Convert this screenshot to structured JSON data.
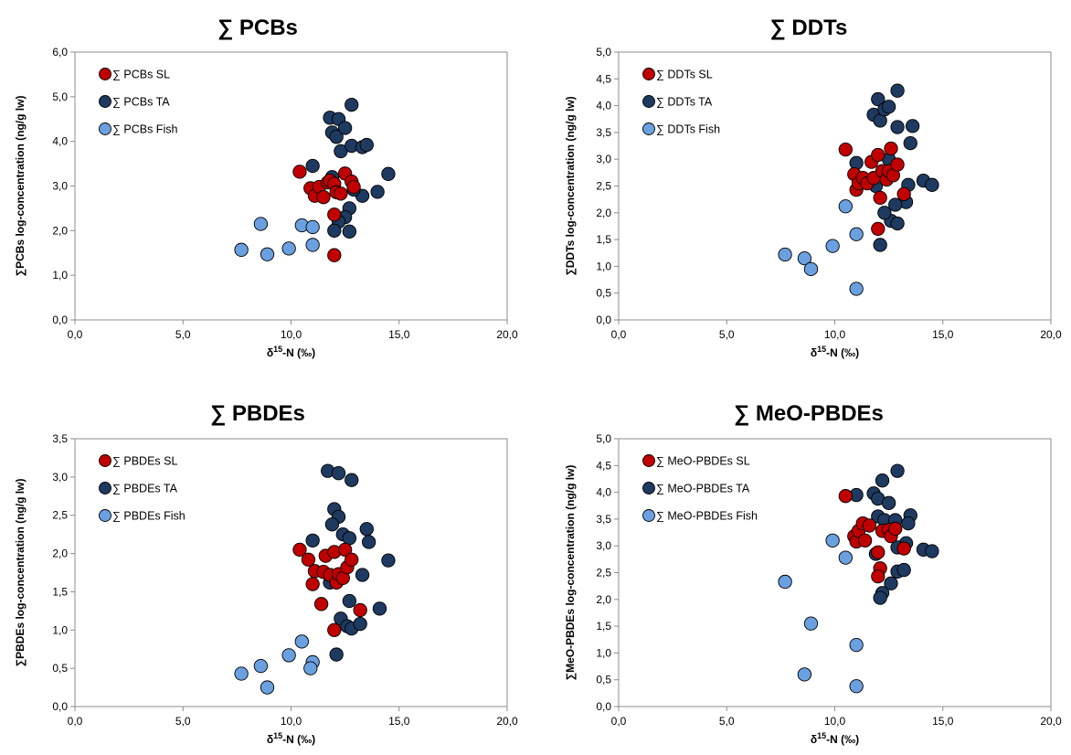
{
  "chart_data": [
    {
      "type": "scatter",
      "title": "∑ PCBs",
      "xlabel": "δ15-N (‰)",
      "ylabel": "∑PCBs log-concentration (ng/g lw)",
      "xlim": [
        0,
        20
      ],
      "ylim": [
        0,
        6
      ],
      "xticks": [
        "0,0",
        "5,0",
        "10,0",
        "15,0",
        "20,0"
      ],
      "yticks": [
        "0,0",
        "1,0",
        "2,0",
        "3,0",
        "4,0",
        "5,0",
        "6,0"
      ],
      "legend": "top-left",
      "series": [
        {
          "name": "∑ PCBs SL",
          "color": "#c00000",
          "points": [
            [
              10.4,
              3.32
            ],
            [
              10.9,
              2.95
            ],
            [
              11.1,
              2.78
            ],
            [
              11.3,
              2.98
            ],
            [
              11.5,
              2.75
            ],
            [
              11.7,
              3.08
            ],
            [
              11.8,
              3.12
            ],
            [
              12.0,
              3.05
            ],
            [
              12.1,
              2.86
            ],
            [
              12.3,
              2.83
            ],
            [
              12.5,
              3.28
            ],
            [
              12.8,
              3.1
            ],
            [
              12.9,
              2.98
            ],
            [
              12.0,
              2.36
            ],
            [
              12.0,
              1.45
            ]
          ]
        },
        {
          "name": "∑ PCBs TA",
          "color": "#1f3a60",
          "points": [
            [
              11.0,
              3.45
            ],
            [
              11.8,
              4.53
            ],
            [
              11.9,
              4.2
            ],
            [
              12.2,
              4.5
            ],
            [
              12.1,
              4.1
            ],
            [
              12.3,
              3.78
            ],
            [
              12.5,
              4.3
            ],
            [
              12.8,
              4.82
            ],
            [
              12.8,
              3.9
            ],
            [
              13.3,
              3.87
            ],
            [
              13.5,
              3.92
            ],
            [
              14.5,
              3.27
            ],
            [
              14.0,
              2.87
            ],
            [
              13.3,
              2.78
            ],
            [
              12.9,
              2.92
            ],
            [
              12.7,
              2.5
            ],
            [
              12.5,
              2.3
            ],
            [
              12.2,
              2.2
            ],
            [
              12.0,
              2.0
            ],
            [
              12.7,
              1.98
            ],
            [
              11.9,
              3.2
            ]
          ]
        },
        {
          "name": "∑ PCBs Fish",
          "color": "#6ba0e0",
          "points": [
            [
              7.7,
              1.57
            ],
            [
              8.6,
              2.15
            ],
            [
              8.9,
              1.47
            ],
            [
              9.9,
              1.6
            ],
            [
              10.5,
              2.12
            ],
            [
              11.0,
              2.08
            ],
            [
              11.0,
              1.68
            ]
          ]
        }
      ]
    },
    {
      "type": "scatter",
      "title": "∑ DDTs",
      "xlabel": "δ15-N (‰)",
      "ylabel": "∑DDTs log-concentration (ng/g lw)",
      "xlim": [
        0,
        20
      ],
      "ylim": [
        0,
        5
      ],
      "xticks": [
        "0,0",
        "5,0",
        "10,0",
        "15,0",
        "20,0"
      ],
      "yticks": [
        "0,0",
        "0,5",
        "1,0",
        "1,5",
        "2,0",
        "2,5",
        "3,0",
        "3,5",
        "4,0",
        "4,5",
        "5,0"
      ],
      "legend": "top-left",
      "series": [
        {
          "name": "∑ DDTs SL",
          "color": "#c00000",
          "points": [
            [
              10.5,
              3.18
            ],
            [
              10.9,
              2.72
            ],
            [
              11.0,
              2.43
            ],
            [
              11.1,
              2.55
            ],
            [
              11.3,
              2.65
            ],
            [
              11.5,
              2.55
            ],
            [
              11.7,
              2.95
            ],
            [
              11.8,
              2.65
            ],
            [
              12.0,
              3.08
            ],
            [
              12.1,
              2.28
            ],
            [
              12.2,
              2.78
            ],
            [
              12.4,
              2.62
            ],
            [
              12.5,
              2.78
            ],
            [
              12.6,
              3.2
            ],
            [
              12.7,
              2.7
            ],
            [
              12.9,
              2.9
            ],
            [
              13.2,
              2.35
            ],
            [
              12.0,
              1.7
            ]
          ]
        },
        {
          "name": "∑ DDTs TA",
          "color": "#1f3a60",
          "points": [
            [
              11.0,
              2.93
            ],
            [
              11.8,
              3.83
            ],
            [
              12.0,
              4.12
            ],
            [
              12.1,
              3.72
            ],
            [
              12.3,
              3.93
            ],
            [
              12.5,
              3.98
            ],
            [
              12.9,
              4.28
            ],
            [
              12.9,
              3.6
            ],
            [
              13.6,
              3.62
            ],
            [
              13.5,
              3.3
            ],
            [
              14.1,
              2.6
            ],
            [
              14.5,
              2.52
            ],
            [
              13.4,
              2.52
            ],
            [
              13.3,
              2.2
            ],
            [
              12.8,
              2.15
            ],
            [
              12.6,
              1.85
            ],
            [
              12.3,
              2.0
            ],
            [
              12.9,
              1.8
            ],
            [
              12.1,
              1.4
            ],
            [
              11.9,
              2.5
            ],
            [
              12.5,
              3.0
            ]
          ]
        },
        {
          "name": "∑ DDTs Fish",
          "color": "#6ba0e0",
          "points": [
            [
              7.7,
              1.22
            ],
            [
              8.6,
              1.15
            ],
            [
              8.9,
              0.95
            ],
            [
              9.9,
              1.38
            ],
            [
              10.5,
              2.12
            ],
            [
              11.0,
              1.6
            ],
            [
              11.0,
              0.58
            ]
          ]
        }
      ]
    },
    {
      "type": "scatter",
      "title": "∑ PBDEs",
      "xlabel": "δ15-N (‰)",
      "ylabel": "∑PBDEs log-concentration (ng/g lw)",
      "xlim": [
        0,
        20
      ],
      "ylim": [
        0,
        3.5
      ],
      "xticks": [
        "0,0",
        "5,0",
        "10,0",
        "15,0",
        "20,0"
      ],
      "yticks": [
        "0,0",
        "0,5",
        "1,0",
        "1,5",
        "2,0",
        "2,5",
        "3,0",
        "3,5"
      ],
      "legend": "top-left",
      "series": [
        {
          "name": "∑ PBDEs SL",
          "color": "#c00000",
          "points": [
            [
              10.4,
              2.05
            ],
            [
              10.8,
              1.92
            ],
            [
              11.0,
              1.6
            ],
            [
              11.1,
              1.77
            ],
            [
              11.5,
              1.76
            ],
            [
              11.6,
              1.97
            ],
            [
              11.8,
              1.72
            ],
            [
              12.0,
              2.02
            ],
            [
              12.1,
              1.62
            ],
            [
              12.2,
              1.73
            ],
            [
              12.4,
              1.68
            ],
            [
              12.5,
              2.05
            ],
            [
              12.6,
              1.82
            ],
            [
              12.8,
              1.92
            ],
            [
              11.4,
              1.34
            ],
            [
              13.2,
              1.26
            ],
            [
              12.0,
              1.0
            ]
          ]
        },
        {
          "name": "∑ PBDEs TA",
          "color": "#1f3a60",
          "points": [
            [
              11.0,
              2.17
            ],
            [
              11.7,
              3.08
            ],
            [
              12.2,
              3.05
            ],
            [
              12.8,
              2.96
            ],
            [
              12.0,
              2.58
            ],
            [
              12.2,
              2.48
            ],
            [
              12.4,
              2.25
            ],
            [
              12.7,
              2.2
            ],
            [
              13.5,
              2.32
            ],
            [
              13.6,
              2.15
            ],
            [
              14.5,
              1.91
            ],
            [
              13.3,
              1.72
            ],
            [
              12.7,
              1.38
            ],
            [
              11.8,
              1.62
            ],
            [
              12.3,
              1.15
            ],
            [
              12.6,
              1.05
            ],
            [
              12.8,
              1.02
            ],
            [
              13.2,
              1.08
            ],
            [
              14.1,
              1.28
            ],
            [
              12.1,
              0.68
            ],
            [
              11.9,
              2.38
            ]
          ]
        },
        {
          "name": "∑ PBDEs Fish",
          "color": "#6ba0e0",
          "points": [
            [
              7.7,
              0.43
            ],
            [
              8.6,
              0.53
            ],
            [
              8.9,
              0.25
            ],
            [
              9.9,
              0.67
            ],
            [
              10.5,
              0.85
            ],
            [
              11.0,
              0.58
            ],
            [
              10.9,
              0.5
            ]
          ]
        }
      ]
    },
    {
      "type": "scatter",
      "title": "∑ MeO-PBDEs",
      "xlabel": "δ15-N (‰)",
      "ylabel": "∑MeO-PBDEs log-concentration (ng/g lw)",
      "xlim": [
        0,
        20
      ],
      "ylim": [
        0,
        5
      ],
      "xticks": [
        "0,0",
        "5,0",
        "10,0",
        "15,0",
        "20,0"
      ],
      "yticks": [
        "0,0",
        "0,5",
        "1,0",
        "1,5",
        "2,0",
        "2,5",
        "3,0",
        "3,5",
        "4,0",
        "4,5",
        "5,0"
      ],
      "legend": "top-left",
      "series": [
        {
          "name": "∑ MeO-PBDEs SL",
          "color": "#c00000",
          "points": [
            [
              10.5,
              3.93
            ],
            [
              10.9,
              3.18
            ],
            [
              11.0,
              3.08
            ],
            [
              11.1,
              3.28
            ],
            [
              11.3,
              3.42
            ],
            [
              11.4,
              3.1
            ],
            [
              11.6,
              3.38
            ],
            [
              12.0,
              2.88
            ],
            [
              12.2,
              3.28
            ],
            [
              12.5,
              3.3
            ],
            [
              12.6,
              3.18
            ],
            [
              12.8,
              3.32
            ],
            [
              13.2,
              2.95
            ],
            [
              12.1,
              2.58
            ],
            [
              12.0,
              2.43
            ]
          ]
        },
        {
          "name": "∑ MeO-PBDEs TA",
          "color": "#1f3a60",
          "points": [
            [
              11.0,
              3.95
            ],
            [
              11.8,
              3.98
            ],
            [
              12.0,
              3.88
            ],
            [
              12.2,
              4.22
            ],
            [
              12.5,
              3.8
            ],
            [
              12.9,
              4.4
            ],
            [
              12.0,
              3.55
            ],
            [
              12.3,
              3.48
            ],
            [
              12.8,
              3.48
            ],
            [
              13.5,
              3.57
            ],
            [
              13.4,
              3.42
            ],
            [
              14.1,
              2.93
            ],
            [
              14.5,
              2.9
            ],
            [
              13.3,
              3.05
            ],
            [
              12.9,
              2.97
            ],
            [
              12.9,
              2.52
            ],
            [
              13.2,
              2.55
            ],
            [
              12.6,
              2.3
            ],
            [
              12.2,
              2.12
            ],
            [
              12.1,
              2.03
            ],
            [
              11.9,
              2.85
            ]
          ]
        },
        {
          "name": "∑ MeO-PBDEs Fish",
          "color": "#6ba0e0",
          "points": [
            [
              7.7,
              2.33
            ],
            [
              8.6,
              0.6
            ],
            [
              8.9,
              1.55
            ],
            [
              9.9,
              3.1
            ],
            [
              10.5,
              2.78
            ],
            [
              11.0,
              1.15
            ],
            [
              11.0,
              0.38
            ]
          ]
        }
      ]
    }
  ]
}
